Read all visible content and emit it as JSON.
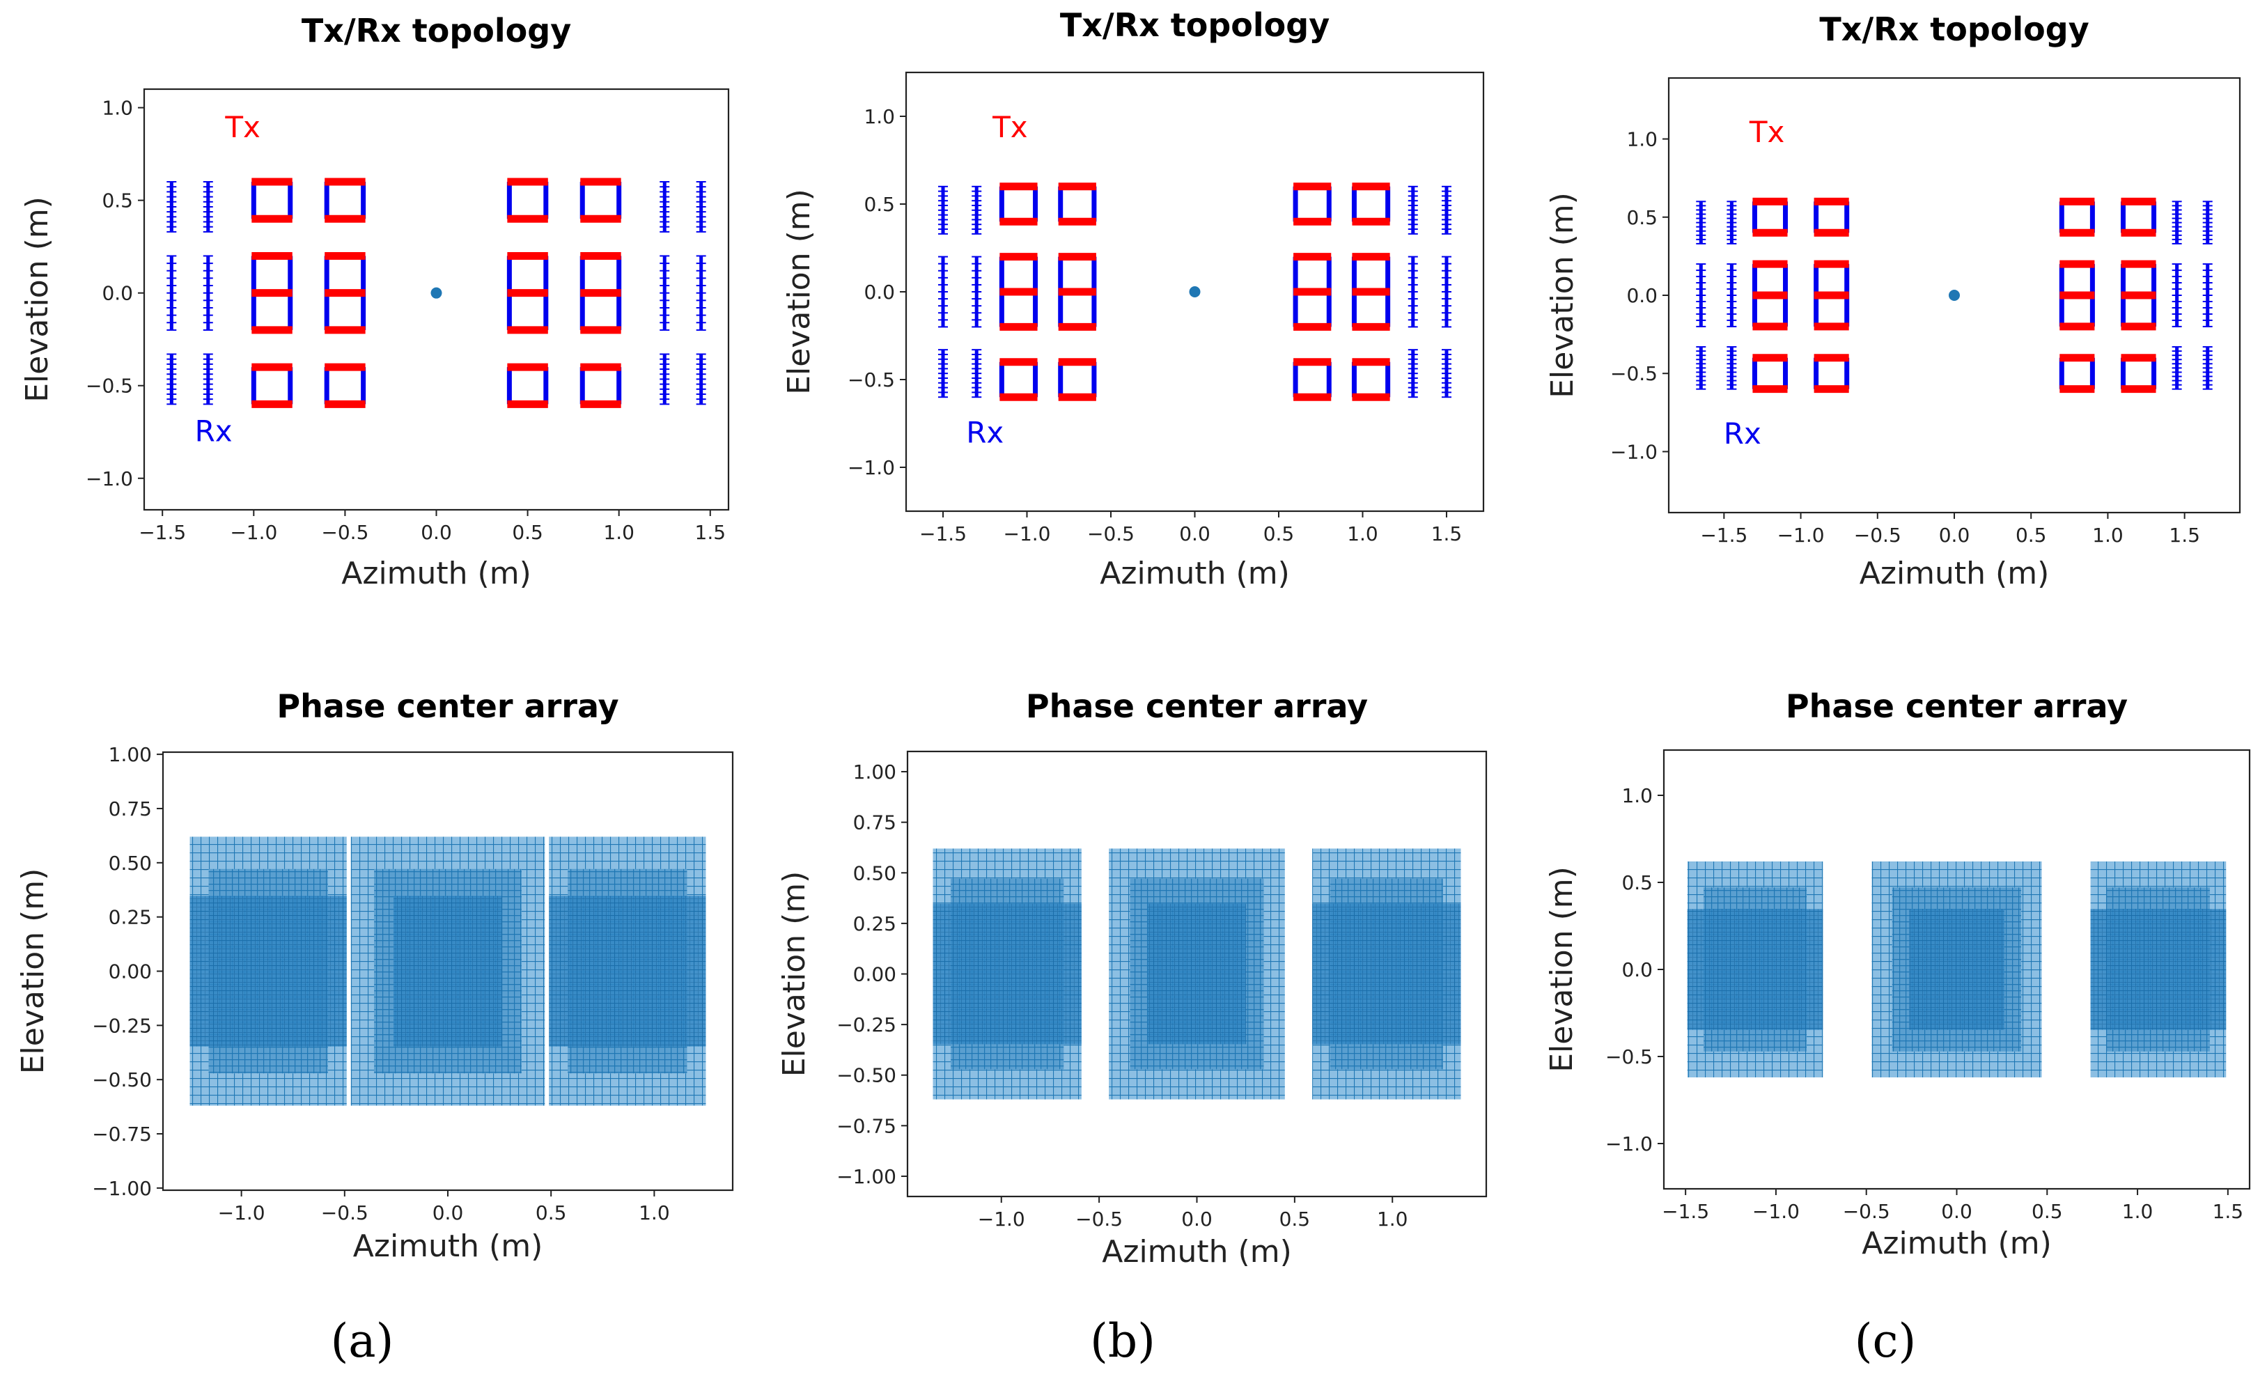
{
  "colors": {
    "tx": "#ff0000",
    "rx": "#0000ee",
    "pca": "#1f77b4",
    "center": "#1f77b4"
  },
  "panel_labels": [
    "(a)",
    "(b)",
    "(c)"
  ],
  "chart_data": [
    {
      "type": "scatter",
      "title": "Tx/Rx topology",
      "xlabel": "Azimuth (m)",
      "ylabel": "Elevation (m)",
      "xlim": [
        -1.6,
        1.6
      ],
      "ylim": [
        -1.17,
        1.1
      ],
      "xticks": [
        -1.5,
        -1.0,
        -0.5,
        0.0,
        0.5,
        1.0,
        1.5
      ],
      "xtick_labels": [
        "−1.5",
        "−1.0",
        "−0.5",
        "0.0",
        "0.5",
        "1.0",
        "1.5"
      ],
      "yticks": [
        -1.0,
        -0.5,
        0.0,
        0.5,
        1.0
      ],
      "ytick_labels": [
        "−1.0",
        "−0.5",
        "0.0",
        "0.5",
        "1.0"
      ],
      "annotations": [
        {
          "text": "Tx",
          "x": -1.06,
          "y": 0.84,
          "color": "tx"
        },
        {
          "text": "Rx",
          "x": -1.22,
          "y": -0.8,
          "color": "rx"
        }
      ],
      "center": [
        0,
        0
      ],
      "tx_squares": {
        "x": [
          [
            -1.0,
            -0.8
          ],
          [
            -0.6,
            -0.4
          ],
          [
            0.4,
            0.6
          ],
          [
            0.8,
            1.0
          ]
        ],
        "y": [
          [
            0.4,
            0.6
          ],
          [
            0.0,
            0.2
          ],
          [
            -0.2,
            0.0
          ],
          [
            -0.6,
            -0.4
          ]
        ]
      },
      "rx_lines": {
        "x": [
          -1.45,
          -1.25,
          1.25,
          1.45
        ],
        "y": [
          [
            0.3,
            0.6
          ],
          [
            -0.2,
            0.2
          ],
          [
            -0.2,
            -0.2
          ],
          [
            -0.6,
            -0.3
          ]
        ]
      }
    },
    {
      "type": "scatter",
      "title": "Tx/Rx topology",
      "xlabel": "Azimuth (m)",
      "ylabel": "Elevation (m)",
      "xlim": [
        -1.72,
        1.72
      ],
      "ylim": [
        -1.25,
        1.25
      ],
      "xticks": [
        -1.5,
        -1.0,
        -0.5,
        0.0,
        0.5,
        1.0,
        1.5
      ],
      "xtick_labels": [
        "−1.5",
        "−1.0",
        "−0.5",
        "0.0",
        "0.5",
        "1.0",
        "1.5"
      ],
      "yticks": [
        -1.0,
        -0.5,
        0.0,
        0.5,
        1.0
      ],
      "ytick_labels": [
        "−1.0",
        "−0.5",
        "0.0",
        "0.5",
        "1.0"
      ],
      "annotations": [
        {
          "text": "Tx",
          "x": -1.1,
          "y": 0.88,
          "color": "tx"
        },
        {
          "text": "Rx",
          "x": -1.25,
          "y": -0.86,
          "color": "rx"
        }
      ],
      "center": [
        0,
        0
      ],
      "tx_squares": {
        "x": [
          [
            -1.15,
            -0.95
          ],
          [
            -0.8,
            -0.6
          ],
          [
            0.6,
            0.8
          ],
          [
            0.95,
            1.15
          ]
        ],
        "y": [
          [
            0.4,
            0.6
          ],
          [
            0.0,
            0.2
          ],
          [
            -0.2,
            0.0
          ],
          [
            -0.6,
            -0.4
          ]
        ]
      },
      "rx_lines": {
        "x": [
          -1.5,
          -1.3,
          1.3,
          1.5
        ],
        "y": [
          [
            0.3,
            0.6
          ],
          [
            -0.2,
            0.2
          ],
          [
            -0.2,
            -0.2
          ],
          [
            -0.6,
            -0.3
          ]
        ]
      }
    },
    {
      "type": "scatter",
      "title": "Tx/Rx topology",
      "xlabel": "Azimuth (m)",
      "ylabel": "Elevation (m)",
      "xlim": [
        -1.86,
        1.86
      ],
      "ylim": [
        -1.39,
        1.39
      ],
      "xticks": [
        -1.5,
        -1.0,
        -0.5,
        0.0,
        0.5,
        1.0,
        1.5
      ],
      "xtick_labels": [
        "−1.5",
        "−1.0",
        "−0.5",
        "0.0",
        "0.5",
        "1.0",
        "1.5"
      ],
      "yticks": [
        -1.0,
        -0.5,
        0.0,
        0.5,
        1.0
      ],
      "ytick_labels": [
        "−1.0",
        "−0.5",
        "0.0",
        "0.5",
        "1.0"
      ],
      "annotations": [
        {
          "text": "Tx",
          "x": -1.22,
          "y": 0.98,
          "color": "tx"
        },
        {
          "text": "Rx",
          "x": -1.38,
          "y": -0.95,
          "color": "rx"
        }
      ],
      "center": [
        0,
        0
      ],
      "tx_squares": {
        "x": [
          [
            -1.3,
            -1.1
          ],
          [
            -0.9,
            -0.7
          ],
          [
            0.7,
            0.9
          ],
          [
            1.1,
            1.3
          ]
        ],
        "y": [
          [
            0.4,
            0.6
          ],
          [
            0.0,
            0.2
          ],
          [
            -0.2,
            0.0
          ],
          [
            -0.6,
            -0.4
          ]
        ]
      },
      "rx_lines": {
        "x": [
          -1.65,
          -1.45,
          1.45,
          1.65
        ],
        "y": [
          [
            0.3,
            0.6
          ],
          [
            -0.2,
            0.2
          ],
          [
            -0.2,
            -0.2
          ],
          [
            -0.6,
            -0.3
          ]
        ]
      }
    },
    {
      "type": "scatter",
      "title": "Phase center array",
      "xlabel": "Azimuth (m)",
      "ylabel": "Elevation (m)",
      "xlim": [
        -1.38,
        1.38
      ],
      "ylim": [
        -1.01,
        1.01
      ],
      "xticks": [
        -1.0,
        -0.5,
        0.0,
        0.5,
        1.0
      ],
      "xtick_labels": [
        "−1.0",
        "−0.5",
        "0.0",
        "0.5",
        "1.0"
      ],
      "yticks": [
        -1.0,
        -0.75,
        -0.5,
        -0.25,
        0.0,
        0.25,
        0.5,
        0.75,
        1.0
      ],
      "ytick_labels": [
        "−1.00",
        "−0.75",
        "−0.50",
        "−0.25",
        "0.00",
        "0.25",
        "0.50",
        "0.75",
        "1.00"
      ],
      "blocks": [
        [
          -1.25,
          -0.49
        ],
        [
          -0.47,
          0.47
        ],
        [
          0.49,
          1.25
        ]
      ],
      "block_ylim": [
        -0.62,
        0.62
      ]
    },
    {
      "type": "scatter",
      "title": "Phase center array",
      "xlabel": "Azimuth (m)",
      "ylabel": "Elevation (m)",
      "xlim": [
        -1.48,
        1.48
      ],
      "ylim": [
        -1.1,
        1.1
      ],
      "xticks": [
        -1.0,
        -0.5,
        0.0,
        0.5,
        1.0
      ],
      "xtick_labels": [
        "−1.0",
        "−0.5",
        "0.0",
        "0.5",
        "1.0"
      ],
      "yticks": [
        -1.0,
        -0.75,
        -0.5,
        -0.25,
        0.0,
        0.25,
        0.5,
        0.75,
        1.0
      ],
      "ytick_labels": [
        "−1.00",
        "−0.75",
        "−0.50",
        "−0.25",
        "0.00",
        "0.25",
        "0.50",
        "0.75",
        "1.00"
      ],
      "blocks": [
        [
          -1.35,
          -0.59
        ],
        [
          -0.45,
          0.45
        ],
        [
          0.59,
          1.35
        ]
      ],
      "block_ylim": [
        -0.62,
        0.62
      ]
    },
    {
      "type": "scatter",
      "title": "Phase center array",
      "xlabel": "Azimuth (m)",
      "ylabel": "Elevation (m)",
      "xlim": [
        -1.62,
        1.62
      ],
      "ylim": [
        -1.26,
        1.26
      ],
      "xticks": [
        -1.5,
        -1.0,
        -0.5,
        0.0,
        0.5,
        1.0,
        1.5
      ],
      "xtick_labels": [
        "−1.5",
        "−1.0",
        "−0.5",
        "0.0",
        "0.5",
        "1.0",
        "1.5"
      ],
      "yticks": [
        -1.0,
        -0.5,
        0.0,
        0.5,
        1.0
      ],
      "ytick_labels": [
        "−1.0",
        "−0.5",
        "0.0",
        "0.5",
        "1.0"
      ],
      "blocks": [
        [
          -1.49,
          -0.74
        ],
        [
          -0.47,
          0.47
        ],
        [
          0.74,
          1.49
        ]
      ],
      "block_ylim": [
        -0.62,
        0.62
      ]
    }
  ]
}
